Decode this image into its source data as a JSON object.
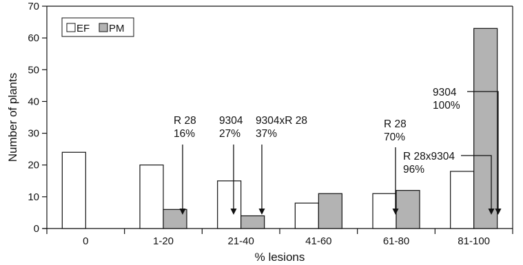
{
  "chart_data": {
    "type": "bar",
    "xlabel": "% lesions",
    "ylabel": "Number of plants",
    "categories": [
      "0",
      "1-20",
      "21-40",
      "41-60",
      "61-80",
      "81-100"
    ],
    "series": [
      {
        "name": "EF",
        "values": [
          24,
          20,
          15,
          8,
          11,
          18
        ]
      },
      {
        "name": "PM",
        "values": [
          0,
          6,
          4,
          11,
          12,
          63
        ]
      }
    ],
    "ylim": [
      0,
      70
    ],
    "yticks": [
      0,
      10,
      20,
      30,
      40,
      50,
      60,
      70
    ],
    "grid": false,
    "legend_position": "top-left",
    "annotations": [
      {
        "lines": [
          "R 28",
          "16%"
        ],
        "category": "1-20"
      },
      {
        "lines": [
          "9304",
          "27%"
        ],
        "category": "21-40"
      },
      {
        "lines": [
          "9304xR 28",
          "37%"
        ],
        "category": "21-40"
      },
      {
        "lines": [
          "R 28",
          "70%"
        ],
        "category": "61-80"
      },
      {
        "lines": [
          "9304",
          "100%"
        ],
        "category": "81-100"
      },
      {
        "lines": [
          "R 28x9304",
          "96%"
        ],
        "category": "81-100"
      }
    ]
  },
  "colors": {
    "ef_fill": "#ffffff",
    "pm_fill": "#b3b3b3",
    "stroke": "#111111"
  }
}
